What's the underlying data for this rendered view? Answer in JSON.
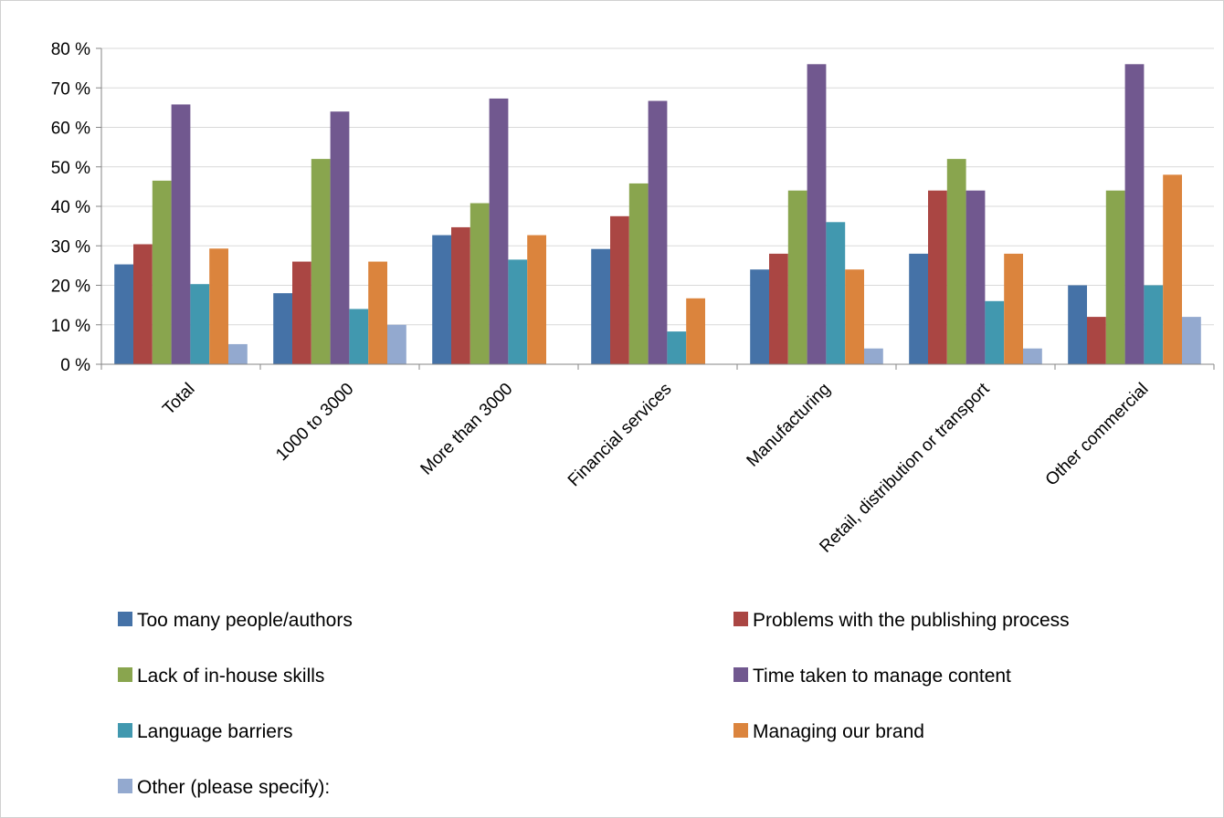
{
  "chart_data": {
    "type": "bar",
    "title": "",
    "xlabel": "",
    "ylabel": "",
    "ylim": [
      0,
      80
    ],
    "y_ticks": [
      "0 %",
      "10 %",
      "20 %",
      "30 %",
      "40 %",
      "50 %",
      "60 %",
      "70 %",
      "80 %"
    ],
    "y_tick_values": [
      0,
      10,
      20,
      30,
      40,
      50,
      60,
      70,
      80
    ],
    "grid": true,
    "legend_position": "bottom",
    "categories": [
      "Total",
      "1000 to 3000",
      "More than 3000",
      "Financial services",
      "Manufacturing",
      "Retail, distribution or transport",
      "Other commercial"
    ],
    "series": [
      {
        "name": "Too many people/authors",
        "color": "#4572A7",
        "values": [
          25.3,
          18,
          32.7,
          29.2,
          24,
          28,
          20
        ]
      },
      {
        "name": "Problems with the publishing process",
        "color": "#AA4643",
        "values": [
          30.4,
          26,
          34.7,
          37.5,
          28,
          44,
          12
        ]
      },
      {
        "name": "Lack of in-house skills",
        "color": "#89A54E",
        "values": [
          46.5,
          52,
          40.8,
          45.8,
          44,
          52,
          44
        ]
      },
      {
        "name": "Time taken to manage content",
        "color": "#71588F",
        "values": [
          65.8,
          64,
          67.3,
          66.7,
          76,
          44,
          76
        ]
      },
      {
        "name": "Language barriers",
        "color": "#4198AF",
        "values": [
          20.3,
          14,
          26.5,
          8.3,
          36,
          16,
          20
        ]
      },
      {
        "name": "Managing our brand",
        "color": "#DB843D",
        "values": [
          29.3,
          26,
          32.7,
          16.7,
          24,
          28,
          48
        ]
      },
      {
        "name": "Other (please specify):",
        "color": "#93A9CF",
        "values": [
          5.1,
          10,
          0,
          0,
          4,
          4,
          12
        ]
      }
    ]
  }
}
